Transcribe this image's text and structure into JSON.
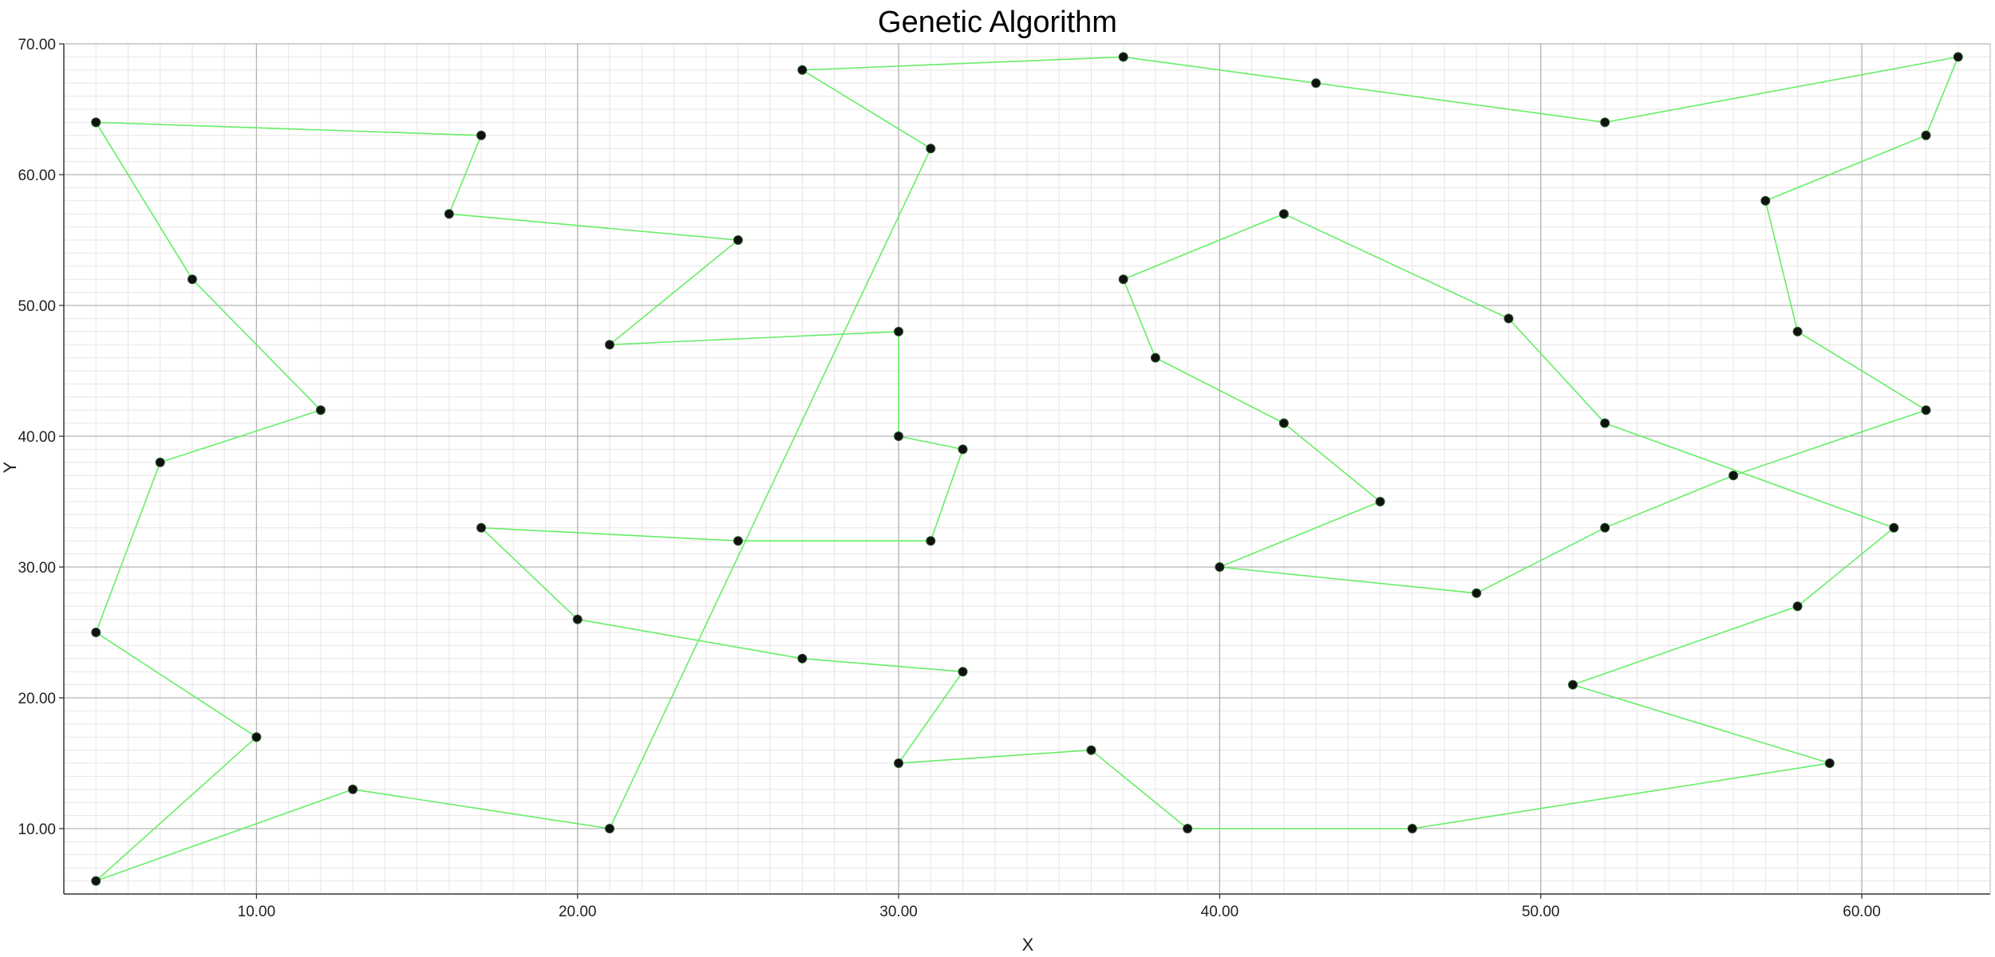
{
  "chart_data": {
    "type": "line",
    "title": "Genetic Algorithm",
    "xlabel": "X",
    "ylabel": "Y",
    "xlim": [
      4,
      64
    ],
    "ylim": [
      5,
      70
    ],
    "x_ticks": [
      "10.00",
      "20.00",
      "30.00",
      "40.00",
      "50.00",
      "60.00"
    ],
    "y_ticks": [
      "10.00",
      "20.00",
      "30.00",
      "40.00",
      "50.00",
      "60.00",
      "70.00"
    ],
    "grid": true,
    "legend": "none",
    "colors": {
      "line": "#66ee66",
      "point": "#111111",
      "major_grid": "#b4b4b4",
      "minor_grid": "#e6e6e6",
      "axis": "#333333"
    },
    "series": [
      {
        "x": [
          5,
          8,
          12,
          7,
          5,
          10,
          5,
          13,
          21,
          31,
          27,
          37,
          43,
          52,
          63,
          62,
          57,
          58,
          62,
          56,
          52,
          48,
          40,
          45,
          42,
          38,
          37,
          42,
          49,
          52,
          61,
          58,
          51,
          59,
          46,
          39,
          36,
          30,
          32,
          27,
          20,
          17,
          25,
          31,
          32,
          30,
          30,
          21,
          25,
          16,
          17,
          5
        ],
        "y": [
          64,
          52,
          42,
          38,
          25,
          17,
          6,
          13,
          10,
          62,
          68,
          69,
          67,
          64,
          69,
          63,
          58,
          48,
          42,
          37,
          33,
          28,
          30,
          35,
          41,
          46,
          52,
          57,
          49,
          41,
          33,
          27,
          21,
          15,
          10,
          10,
          16,
          15,
          22,
          23,
          26,
          33,
          32,
          32,
          39,
          40,
          48,
          47,
          55,
          57,
          63,
          64
        ]
      }
    ]
  }
}
